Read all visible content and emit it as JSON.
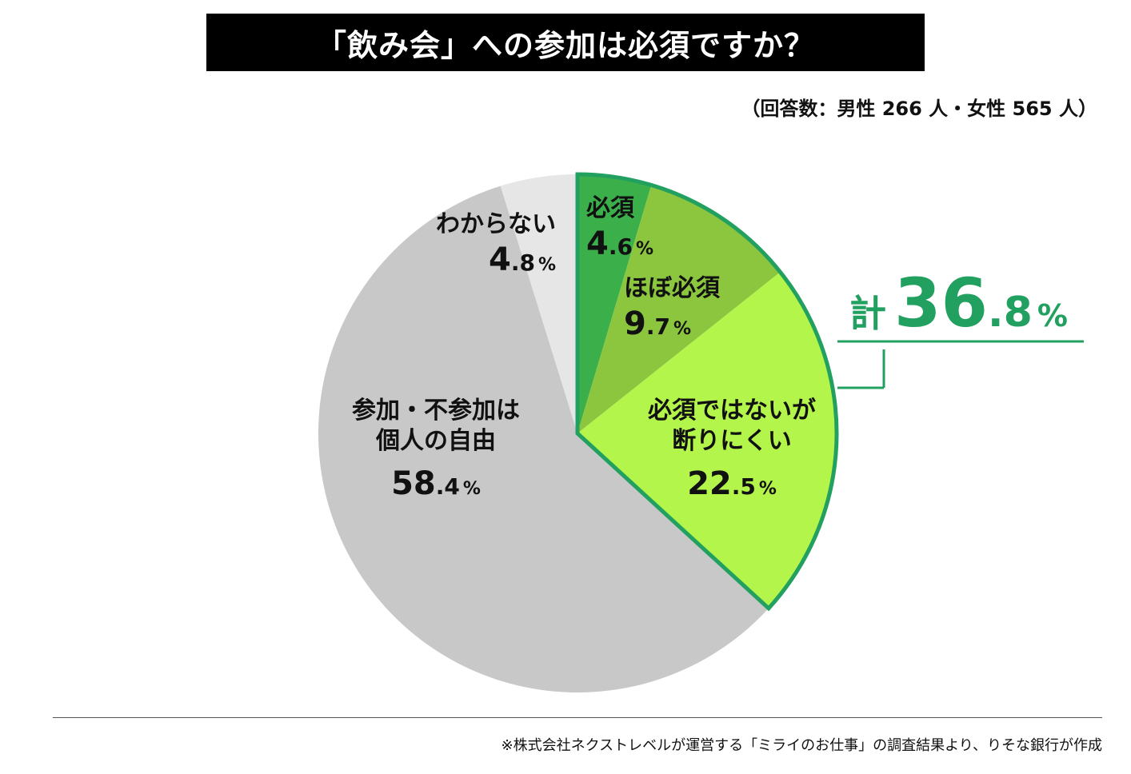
{
  "title": "「飲み会」への参加は必須ですか？",
  "note": "（回答数：男性 266 人・女性 565 人）",
  "source": "※株式会社ネクストレベルが運営する「ミライのお仕事」の調査結果より、りそな銀行が作成",
  "chart_data": {
    "type": "pie",
    "title": "「飲み会」への参加は必須ですか？",
    "start": "top",
    "direction": "clockwise",
    "slices": [
      {
        "label": "必須",
        "value": 4.6,
        "color": "#3bb04a"
      },
      {
        "label": "ほぼ必須",
        "value": 9.7,
        "color": "#8cc63f"
      },
      {
        "label": "必須ではないが断りにくい",
        "value": 22.5,
        "color": "#b3f54a"
      },
      {
        "label": "参加・不参加は個人の自由",
        "value": 58.4,
        "color": "#c8c8c8"
      },
      {
        "label": "わからない",
        "value": 4.8,
        "color": "#e6e6e6"
      }
    ],
    "label_lines": [
      [
        "必須"
      ],
      [
        "ほぼ必須"
      ],
      [
        "必須ではないが",
        "断りにくい"
      ],
      [
        "参加・不参加は",
        "個人の自由"
      ],
      [
        "わからない"
      ]
    ],
    "group_highlight": {
      "prefix": "計",
      "value": 36.8,
      "slices": [
        0,
        1,
        2
      ],
      "color": "#22a060"
    }
  }
}
